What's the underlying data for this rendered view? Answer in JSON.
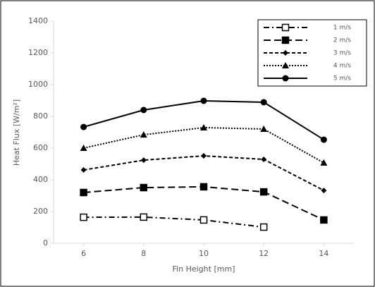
{
  "chart_data": {
    "type": "line",
    "x_label": "Fin Height [mm]",
    "y_label": "Heat Flux [W/m²]",
    "x": [
      6,
      8,
      10,
      12,
      14
    ],
    "xlim": [
      5,
      15
    ],
    "xticks": [
      6,
      8,
      10,
      12,
      14
    ],
    "ylim": [
      0,
      1400
    ],
    "yticks": [
      0,
      200,
      400,
      600,
      800,
      1000,
      1200,
      1400
    ],
    "grid": false,
    "legend": "upper right",
    "series": [
      {
        "name": "1 m/s",
        "color": "#000000",
        "dash": "dash-dot",
        "marker": "square-open",
        "values": [
          164,
          165,
          147,
          102,
          null
        ]
      },
      {
        "name": "2 m/s",
        "color": "#000000",
        "dash": "dash",
        "marker": "square",
        "values": [
          320,
          351,
          356,
          324,
          147
        ]
      },
      {
        "name": "3 m/s",
        "color": "#000000",
        "dash": "short-dash",
        "marker": "diamond",
        "values": [
          462,
          524,
          551,
          529,
          333
        ]
      },
      {
        "name": "4 m/s",
        "color": "#000000",
        "dash": "dot",
        "marker": "triangle",
        "values": [
          600,
          684,
          729,
          720,
          507
        ]
      },
      {
        "name": "5 m/s",
        "color": "#000000",
        "dash": "solid",
        "marker": "circle",
        "values": [
          733,
          840,
          898,
          889,
          653
        ]
      }
    ]
  }
}
